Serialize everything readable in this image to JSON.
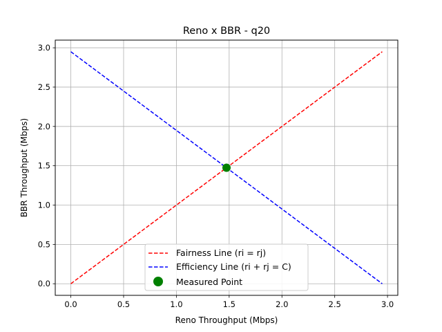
{
  "chart_data": {
    "type": "line",
    "title": "Reno x BBR - q20",
    "xlabel": "Reno Throughput (Mbps)",
    "ylabel": "BBR Throughput (Mbps)",
    "xlim": [
      -0.1475,
      3.0975
    ],
    "ylim": [
      -0.1475,
      3.0975
    ],
    "xticks": [
      "0.0",
      "0.5",
      "1.0",
      "1.5",
      "2.0",
      "2.5",
      "3.0"
    ],
    "yticks": [
      "0.0",
      "0.5",
      "1.0",
      "1.5",
      "2.0",
      "2.5",
      "3.0"
    ],
    "grid": true,
    "legend_position": "lower center",
    "series": [
      {
        "name": "Fairness Line (ri = rj)",
        "style": "dashed",
        "color": "#ff0000",
        "x": [
          0,
          2.95
        ],
        "y": [
          0,
          2.95
        ]
      },
      {
        "name": "Efficiency Line (ri + rj = C)",
        "style": "dashed",
        "color": "#0000ff",
        "x": [
          0,
          2.95
        ],
        "y": [
          2.95,
          0
        ]
      },
      {
        "name": "Measured Point",
        "style": "marker",
        "color": "#008000",
        "x": [
          1.475
        ],
        "y": [
          1.475
        ]
      }
    ]
  }
}
